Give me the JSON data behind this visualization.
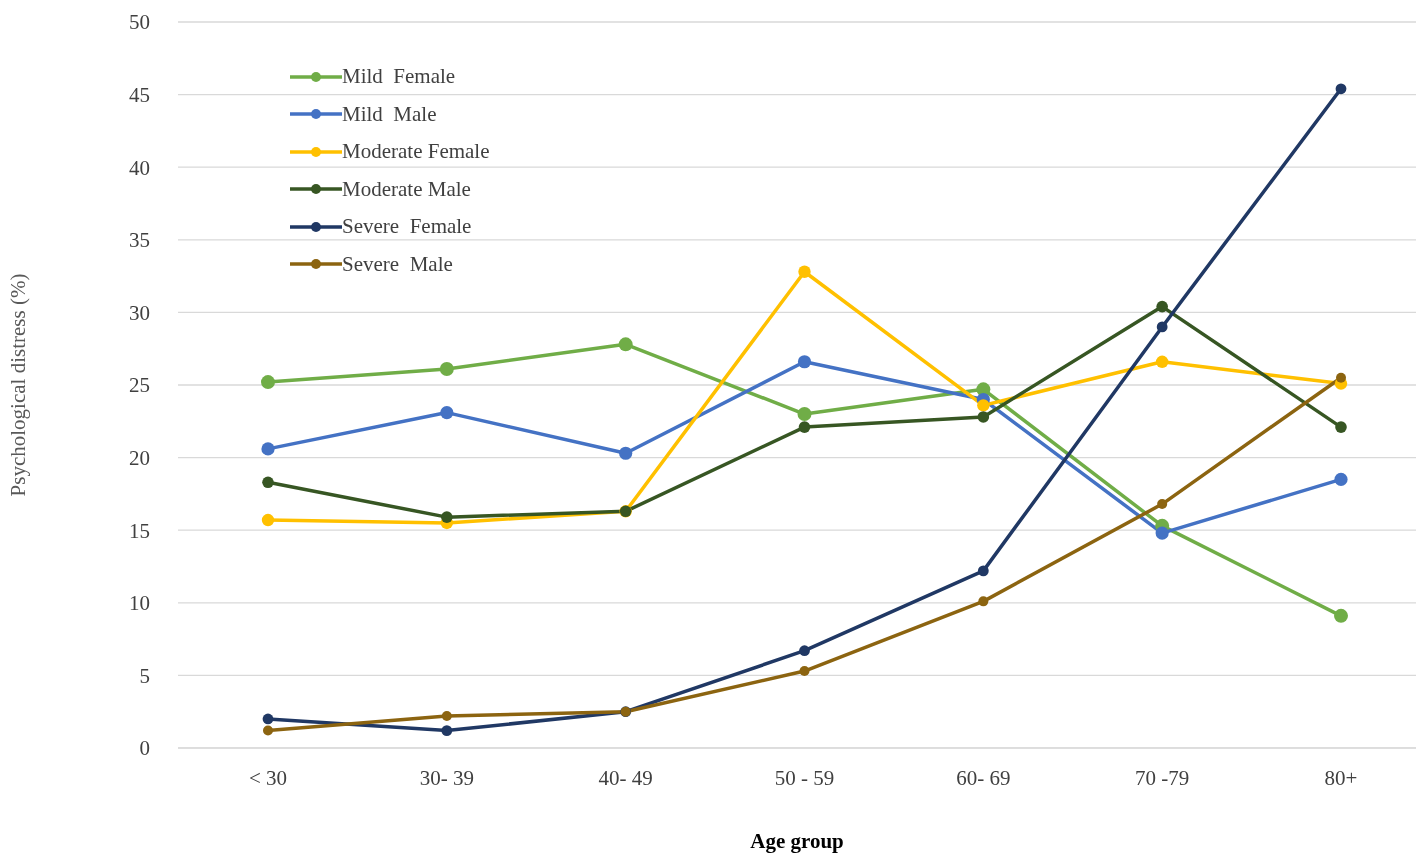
{
  "chart_data": {
    "type": "line",
    "xlabel": "Age group",
    "ylabel": "Psychological  distress  (%)",
    "categories": [
      "< 30",
      "30- 39",
      "40- 49",
      "50 - 59",
      "60- 69",
      "70 -79",
      "80+"
    ],
    "series": [
      {
        "name": "Mild  Female",
        "color": "#70ad47",
        "values": [
          25.2,
          26.1,
          27.8,
          23.0,
          24.7,
          15.3,
          9.1
        ]
      },
      {
        "name": "Mild  Male",
        "color": "#4472c4",
        "values": [
          20.6,
          23.1,
          20.3,
          26.6,
          24.0,
          14.8,
          18.5
        ]
      },
      {
        "name": "Moderate Female",
        "color": "#ffc000",
        "values": [
          15.7,
          15.5,
          16.3,
          32.8,
          23.6,
          26.6,
          25.1
        ]
      },
      {
        "name": "Moderate Male",
        "color": "#375623",
        "values": [
          18.3,
          15.9,
          16.3,
          22.1,
          22.8,
          30.4,
          22.1
        ]
      },
      {
        "name": "Severe  Female",
        "color": "#203864",
        "values": [
          2.0,
          1.2,
          2.5,
          6.7,
          12.2,
          29.0,
          45.4
        ]
      },
      {
        "name": "Severe  Male",
        "color": "#8c6410",
        "values": [
          1.2,
          2.2,
          2.5,
          5.3,
          10.1,
          16.8,
          25.5
        ]
      }
    ],
    "ylim": [
      0,
      50
    ],
    "yticks": [
      0,
      5,
      10,
      15,
      20,
      25,
      30,
      35,
      40,
      45,
      50
    ],
    "grid": "y",
    "legend": "top left",
    "marker": "circle",
    "line_style": "solid"
  }
}
